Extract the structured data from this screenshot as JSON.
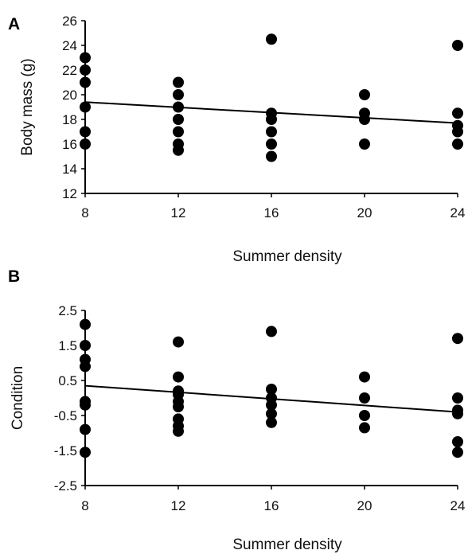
{
  "chart_data": [
    {
      "panel": "A",
      "type": "scatter",
      "xlabel": "Summer density",
      "ylabel": "Body mass (g)",
      "xticks": [
        "8",
        "12",
        "16",
        "20",
        "24"
      ],
      "yticks": [
        "12",
        "14",
        "16",
        "18",
        "20",
        "22",
        "24",
        "26"
      ],
      "xlim": [
        8,
        24
      ],
      "ylim": [
        12,
        26
      ],
      "grid": false,
      "points": [
        {
          "x": 8,
          "y": 23
        },
        {
          "x": 8,
          "y": 22
        },
        {
          "x": 8,
          "y": 21
        },
        {
          "x": 8,
          "y": 19
        },
        {
          "x": 8,
          "y": 17
        },
        {
          "x": 8,
          "y": 16
        },
        {
          "x": 12,
          "y": 21
        },
        {
          "x": 12,
          "y": 20
        },
        {
          "x": 12,
          "y": 19
        },
        {
          "x": 12,
          "y": 18
        },
        {
          "x": 12,
          "y": 17
        },
        {
          "x": 12,
          "y": 16
        },
        {
          "x": 12,
          "y": 15.5
        },
        {
          "x": 16,
          "y": 24.5
        },
        {
          "x": 16,
          "y": 18.5
        },
        {
          "x": 16,
          "y": 18
        },
        {
          "x": 16,
          "y": 17
        },
        {
          "x": 16,
          "y": 16
        },
        {
          "x": 16,
          "y": 15
        },
        {
          "x": 20,
          "y": 20
        },
        {
          "x": 20,
          "y": 18.5
        },
        {
          "x": 20,
          "y": 18
        },
        {
          "x": 20,
          "y": 16
        },
        {
          "x": 24,
          "y": 24
        },
        {
          "x": 24,
          "y": 18.5
        },
        {
          "x": 24,
          "y": 17.5
        },
        {
          "x": 24,
          "y": 17
        },
        {
          "x": 24,
          "y": 16
        }
      ],
      "trendline": {
        "x": [
          8,
          24
        ],
        "y": [
          19.4,
          17.7
        ]
      }
    },
    {
      "panel": "B",
      "type": "scatter",
      "xlabel": "Summer density",
      "ylabel": "Condition",
      "xticks": [
        "8",
        "12",
        "16",
        "20",
        "24"
      ],
      "yticks": [
        "-2.5",
        "-1.5",
        "-0.5",
        "0.5",
        "1.5",
        "2.5"
      ],
      "xlim": [
        8,
        24
      ],
      "ylim": [
        -2.5,
        2.5
      ],
      "grid": false,
      "points": [
        {
          "x": 8,
          "y": 2.1
        },
        {
          "x": 8,
          "y": 1.5
        },
        {
          "x": 8,
          "y": 1.1
        },
        {
          "x": 8,
          "y": 0.9
        },
        {
          "x": 8,
          "y": -0.1
        },
        {
          "x": 8,
          "y": -0.2
        },
        {
          "x": 8,
          "y": -0.9
        },
        {
          "x": 8,
          "y": -1.55
        },
        {
          "x": 12,
          "y": 1.6
        },
        {
          "x": 12,
          "y": 0.6
        },
        {
          "x": 12,
          "y": 0.2
        },
        {
          "x": 12,
          "y": 0.1
        },
        {
          "x": 12,
          "y": -0.1
        },
        {
          "x": 12,
          "y": -0.25
        },
        {
          "x": 12,
          "y": -0.6
        },
        {
          "x": 12,
          "y": -0.8
        },
        {
          "x": 12,
          "y": -0.95
        },
        {
          "x": 16,
          "y": 1.9
        },
        {
          "x": 16,
          "y": 0.25
        },
        {
          "x": 16,
          "y": 0.0
        },
        {
          "x": 16,
          "y": -0.2
        },
        {
          "x": 16,
          "y": -0.45
        },
        {
          "x": 16,
          "y": -0.7
        },
        {
          "x": 20,
          "y": 0.6
        },
        {
          "x": 20,
          "y": 0.0
        },
        {
          "x": 20,
          "y": -0.5
        },
        {
          "x": 20,
          "y": -0.85
        },
        {
          "x": 24,
          "y": 1.7
        },
        {
          "x": 24,
          "y": 0.0
        },
        {
          "x": 24,
          "y": -0.35
        },
        {
          "x": 24,
          "y": -0.45
        },
        {
          "x": 24,
          "y": -1.25
        },
        {
          "x": 24,
          "y": -1.55
        }
      ],
      "trendline": {
        "x": [
          8,
          24
        ],
        "y": [
          0.35,
          -0.4
        ]
      }
    }
  ]
}
